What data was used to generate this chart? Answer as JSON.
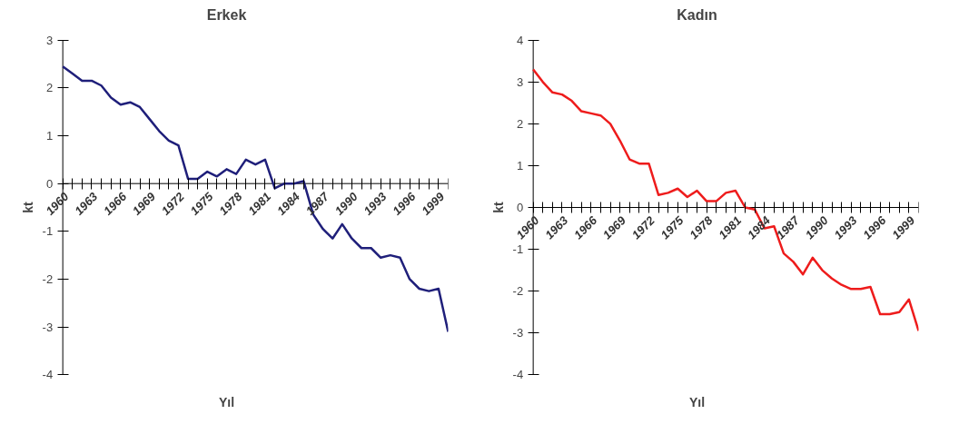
{
  "chart_data": [
    {
      "type": "line",
      "title": "Erkek",
      "xlabel": "Yıl",
      "ylabel": "kt",
      "grid": false,
      "x": [
        1960,
        1961,
        1962,
        1963,
        1964,
        1965,
        1966,
        1967,
        1968,
        1969,
        1970,
        1971,
        1972,
        1973,
        1974,
        1975,
        1976,
        1977,
        1978,
        1979,
        1980,
        1981,
        1982,
        1983,
        1984,
        1985,
        1986,
        1987,
        1988,
        1989,
        1990,
        1991,
        1992,
        1993,
        1994,
        1995,
        1996,
        1997,
        1998,
        1999,
        2000
      ],
      "series": [
        {
          "color": "#1f1f7a",
          "values": [
            2.45,
            2.3,
            2.15,
            2.15,
            2.05,
            1.8,
            1.65,
            1.7,
            1.6,
            1.35,
            1.1,
            0.9,
            0.8,
            0.1,
            0.1,
            0.25,
            0.15,
            0.3,
            0.2,
            0.5,
            0.4,
            0.5,
            -0.1,
            0.0,
            0.0,
            0.05,
            -0.65,
            -0.95,
            -1.15,
            -0.85,
            -1.15,
            -1.35,
            -1.35,
            -1.55,
            -1.5,
            -1.55,
            -2.0,
            -2.2,
            -2.25,
            -2.2,
            -3.1
          ]
        }
      ],
      "xlim": [
        1960,
        2000
      ],
      "xticks": [
        1960,
        {
          "value": 1961,
          "label": null
        },
        {
          "value": 1962,
          "label": null
        },
        1963,
        {
          "value": 1964,
          "label": null
        },
        {
          "value": 1965,
          "label": null
        },
        1966,
        {
          "value": 1967,
          "label": null
        },
        {
          "value": 1968,
          "label": null
        },
        1969,
        {
          "value": 1970,
          "label": null
        },
        {
          "value": 1971,
          "label": null
        },
        1972,
        {
          "value": 1973,
          "label": null
        },
        {
          "value": 1974,
          "label": null
        },
        1975,
        {
          "value": 1976,
          "label": null
        },
        {
          "value": 1977,
          "label": null
        },
        1978,
        {
          "value": 1979,
          "label": null
        },
        {
          "value": 1980,
          "label": null
        },
        1981,
        {
          "value": 1982,
          "label": null
        },
        {
          "value": 1983,
          "label": null
        },
        1984,
        {
          "value": 1985,
          "label": null
        },
        {
          "value": 1986,
          "label": null
        },
        1987,
        {
          "value": 1988,
          "label": null
        },
        {
          "value": 1989,
          "label": null
        },
        1990,
        {
          "value": 1991,
          "label": null
        },
        {
          "value": 1992,
          "label": null
        },
        1993,
        {
          "value": 1994,
          "label": null
        },
        {
          "value": 1995,
          "label": null
        },
        1996,
        {
          "value": 1997,
          "label": null
        },
        {
          "value": 1998,
          "label": null
        },
        1999,
        {
          "value": 2000,
          "label": null
        }
      ],
      "ylim": [
        -4,
        3
      ],
      "yticks": [
        -4,
        -3,
        -2,
        -1,
        0,
        1,
        2,
        3
      ]
    },
    {
      "type": "line",
      "title": "Kadın",
      "xlabel": "Yıl",
      "ylabel": "kt",
      "grid": false,
      "x": [
        1960,
        1961,
        1962,
        1963,
        1964,
        1965,
        1966,
        1967,
        1968,
        1969,
        1970,
        1971,
        1972,
        1973,
        1974,
        1975,
        1976,
        1977,
        1978,
        1979,
        1980,
        1981,
        1982,
        1983,
        1984,
        1985,
        1986,
        1987,
        1988,
        1989,
        1990,
        1991,
        1992,
        1993,
        1994,
        1995,
        1996,
        1997,
        1998,
        1999,
        2000
      ],
      "series": [
        {
          "color": "#ee1c1c",
          "values": [
            3.3,
            3.0,
            2.75,
            2.7,
            2.55,
            2.3,
            2.25,
            2.2,
            2.0,
            1.6,
            1.15,
            1.05,
            1.05,
            0.3,
            0.35,
            0.45,
            0.25,
            0.4,
            0.15,
            0.15,
            0.35,
            0.4,
            0.0,
            -0.05,
            -0.5,
            -0.45,
            -1.1,
            -1.3,
            -1.6,
            -1.2,
            -1.5,
            -1.7,
            -1.85,
            -1.95,
            -1.95,
            -1.9,
            -2.55,
            -2.55,
            -2.5,
            -2.2,
            -2.95
          ]
        }
      ],
      "xlim": [
        1960,
        2000
      ],
      "xticks": [
        1960,
        {
          "value": 1961,
          "label": null
        },
        {
          "value": 1962,
          "label": null
        },
        1963,
        {
          "value": 1964,
          "label": null
        },
        {
          "value": 1965,
          "label": null
        },
        1966,
        {
          "value": 1967,
          "label": null
        },
        {
          "value": 1968,
          "label": null
        },
        1969,
        {
          "value": 1970,
          "label": null
        },
        {
          "value": 1971,
          "label": null
        },
        1972,
        {
          "value": 1973,
          "label": null
        },
        {
          "value": 1974,
          "label": null
        },
        1975,
        {
          "value": 1976,
          "label": null
        },
        {
          "value": 1977,
          "label": null
        },
        1978,
        {
          "value": 1979,
          "label": null
        },
        {
          "value": 1980,
          "label": null
        },
        1981,
        {
          "value": 1982,
          "label": null
        },
        {
          "value": 1983,
          "label": null
        },
        1984,
        {
          "value": 1985,
          "label": null
        },
        {
          "value": 1986,
          "label": null
        },
        1987,
        {
          "value": 1988,
          "label": null
        },
        {
          "value": 1989,
          "label": null
        },
        1990,
        {
          "value": 1991,
          "label": null
        },
        {
          "value": 1992,
          "label": null
        },
        1993,
        {
          "value": 1994,
          "label": null
        },
        {
          "value": 1995,
          "label": null
        },
        1996,
        {
          "value": 1997,
          "label": null
        },
        {
          "value": 1998,
          "label": null
        },
        1999,
        {
          "value": 2000,
          "label": null
        }
      ],
      "ylim": [
        -4,
        4
      ],
      "yticks": [
        -4,
        -3,
        -2,
        -1,
        0,
        1,
        2,
        3,
        4
      ]
    }
  ]
}
